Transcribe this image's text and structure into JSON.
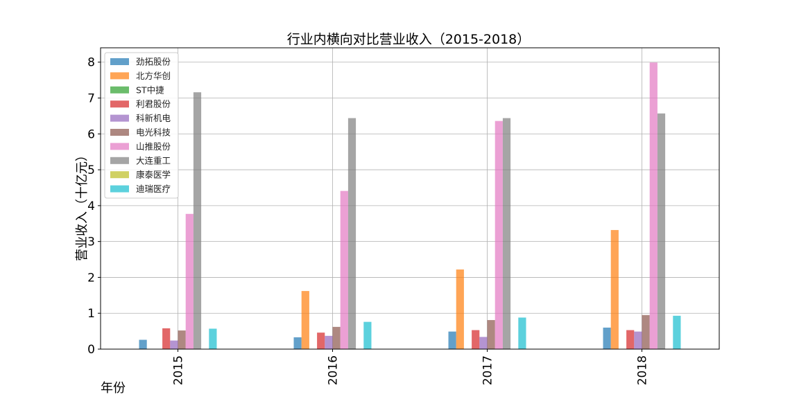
{
  "chart_data": {
    "type": "bar",
    "title": "行业内横向对比营业收入（2015-2018）",
    "xlabel": "年份",
    "ylabel": "营业收入（十亿元）",
    "categories": [
      "2015",
      "2016",
      "2017",
      "2018"
    ],
    "ylim": [
      0,
      8.4
    ],
    "yticks": [
      "0",
      "1",
      "2",
      "3",
      "4",
      "5",
      "6",
      "7",
      "8"
    ],
    "grid": true,
    "legend_position": "top-left",
    "series": [
      {
        "name": "劲拓股份",
        "color": "#1f77b4",
        "values": [
          0.26,
          0.33,
          0.49,
          0.6
        ]
      },
      {
        "name": "北方华创",
        "color": "#ff7f0e",
        "values": [
          0,
          1.62,
          2.22,
          3.32
        ]
      },
      {
        "name": "ST中捷",
        "color": "#2ca02c",
        "values": [
          0,
          0,
          0,
          0
        ]
      },
      {
        "name": "利君股份",
        "color": "#d62728",
        "values": [
          0.58,
          0.46,
          0.53,
          0.53
        ]
      },
      {
        "name": "科新机电",
        "color": "#9467bd",
        "values": [
          0.24,
          0.37,
          0.34,
          0.49
        ]
      },
      {
        "name": "电光科技",
        "color": "#8c564b",
        "values": [
          0.52,
          0.62,
          0.81,
          0.95
        ]
      },
      {
        "name": "山推股份",
        "color": "#e377c2",
        "values": [
          3.77,
          4.41,
          6.36,
          7.99
        ]
      },
      {
        "name": "大连重工",
        "color": "#7f7f7f",
        "values": [
          7.16,
          6.44,
          6.44,
          6.57
        ]
      },
      {
        "name": "康泰医学",
        "color": "#bcbd22",
        "values": [
          0,
          0,
          0,
          0
        ]
      },
      {
        "name": "迪瑞医疗",
        "color": "#17becf",
        "values": [
          0.57,
          0.76,
          0.88,
          0.93
        ]
      }
    ]
  }
}
